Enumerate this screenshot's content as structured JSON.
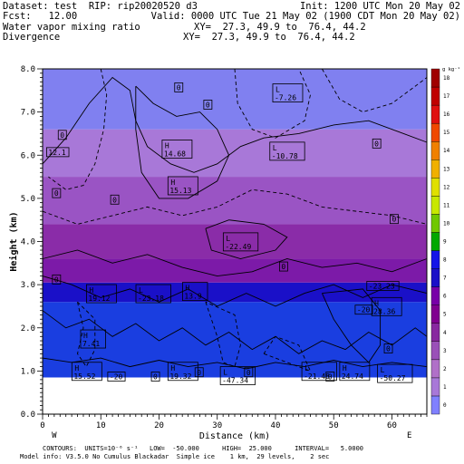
{
  "header": {
    "line1_left": "Dataset: test  RIP: rip20020520 d3",
    "line1_right": "Init: 1200 UTC Mon 20 May 02",
    "line2_left": "Fcst:   12.00",
    "line2_right": "Valid: 0000 UTC Tue 21 May 02 (1900 CDT Mon 20 May 02)",
    "line3_left": "Water vapor mixing ratio",
    "line3_right": "XY=  27.3, 49.9 to  76.4, 44.2",
    "line4_left": "Divergence",
    "line4_right": "XY=  27.3, 49.9 to  76.4, 44.2"
  },
  "footer": {
    "line1": "CONTOURS:  UNITS=10⁻⁶ s⁻¹   LOW=  -50.000      HIGH=  25.000      INTERVAL=   5.0000",
    "line2": "Model info: V3.5.0 No Cumulus Blackadar  Simple ice    1 km,  29 levels,    2 sec"
  },
  "chart_data": {
    "type": "heatmap",
    "xlabel": "Distance (km)",
    "ylabel": "Height (km)",
    "xlim": [
      0,
      66
    ],
    "ylim": [
      0,
      8
    ],
    "x_ticks": [
      0,
      10,
      20,
      30,
      40,
      50,
      60
    ],
    "y_ticks": [
      0.0,
      1.0,
      2.0,
      3.0,
      4.0,
      5.0,
      6.0,
      7.0,
      8.0
    ],
    "x_endpoint_labels": [
      "W",
      "E"
    ],
    "terrain_top_km": 0.85,
    "colorbar": {
      "unit_label": "g kg⁻¹",
      "levels": [
        0,
        1,
        2,
        3,
        4,
        5,
        6,
        7,
        8,
        9,
        10,
        11,
        12,
        13,
        14,
        15,
        16,
        17,
        18
      ],
      "colors": [
        "#8080ff",
        "#a878d8",
        "#b070c8",
        "#9a50b8",
        "#8828a0",
        "#800090",
        "#7800a8",
        "#1a10c8",
        "#1414e8",
        "#00a800",
        "#70c800",
        "#c8e800",
        "#e0e000",
        "#f0b000",
        "#f08000",
        "#f04800",
        "#e01010",
        "#c00000",
        "#a00000"
      ]
    },
    "shading_bands": [
      {
        "from": 0.85,
        "to": 2.6,
        "color": "#1a3ee0"
      },
      {
        "from": 2.6,
        "to": 3.05,
        "color": "#1a10c8"
      },
      {
        "from": 3.05,
        "to": 3.6,
        "color": "#7c1aa8"
      },
      {
        "from": 3.6,
        "to": 4.4,
        "color": "#8a2ca8"
      },
      {
        "from": 4.4,
        "to": 5.5,
        "color": "#9a54c4"
      },
      {
        "from": 5.5,
        "to": 6.6,
        "color": "#a878d8"
      },
      {
        "from": 6.6,
        "to": 8.0,
        "color": "#8080f0"
      }
    ],
    "divergence_labels": [
      {
        "x": 1,
        "y": 6.05,
        "text": "12.1"
      },
      {
        "x": 21,
        "y": 6.1,
        "type": "H",
        "text": "14.68"
      },
      {
        "x": 39.5,
        "y": 6.05,
        "type": "L",
        "text": "-10.78"
      },
      {
        "x": 40,
        "y": 7.4,
        "type": "L",
        "text": "-7.26"
      },
      {
        "x": 22,
        "y": 5.25,
        "type": "H",
        "text": "15.13"
      },
      {
        "x": 31.5,
        "y": 3.95,
        "type": "L",
        "text": "-22.49"
      },
      {
        "x": 8,
        "y": 2.75,
        "type": "H",
        "text": "19.12"
      },
      {
        "x": 16.5,
        "y": 2.75,
        "type": "L",
        "text": "-23.18"
      },
      {
        "x": 24.5,
        "y": 2.8,
        "type": "H",
        "text": "13.9"
      },
      {
        "x": 56,
        "y": 2.95,
        "text": "-23.23"
      },
      {
        "x": 54,
        "y": 2.4,
        "text": "-20"
      },
      {
        "x": 57,
        "y": 2.45,
        "type": "H",
        "text": "28.36"
      },
      {
        "x": 7,
        "y": 1.7,
        "type": "H",
        "text": "7.41"
      },
      {
        "x": 5.5,
        "y": 0.95,
        "type": "H",
        "text": "15.52"
      },
      {
        "x": 11.5,
        "y": 0.85,
        "text": "-20"
      },
      {
        "x": 22,
        "y": 0.95,
        "type": "H",
        "text": "19.32"
      },
      {
        "x": 31,
        "y": 0.85,
        "type": "L",
        "text": "-47.34"
      },
      {
        "x": 45,
        "y": 0.95,
        "type": "L",
        "text": "-21.48"
      },
      {
        "x": 51.5,
        "y": 0.95,
        "type": "H",
        "text": "24.74"
      },
      {
        "x": 58,
        "y": 0.9,
        "type": "L",
        "text": "-50.27"
      },
      {
        "x": 23,
        "y": 7.55,
        "text": "0"
      },
      {
        "x": 28,
        "y": 7.15,
        "text": "0"
      },
      {
        "x": 3,
        "y": 6.45,
        "text": "0"
      },
      {
        "x": 57,
        "y": 6.25,
        "text": "0"
      },
      {
        "x": 2,
        "y": 5.1,
        "text": "0"
      },
      {
        "x": 12,
        "y": 4.95,
        "text": "0"
      },
      {
        "x": 60,
        "y": 4.5,
        "text": "0"
      },
      {
        "x": 2,
        "y": 3.1,
        "text": "0"
      },
      {
        "x": 41,
        "y": 3.4,
        "text": "0"
      },
      {
        "x": 19,
        "y": 0.85,
        "text": "0"
      },
      {
        "x": 26.5,
        "y": 0.95,
        "text": "0"
      },
      {
        "x": 35,
        "y": 0.95,
        "text": "0"
      },
      {
        "x": 49,
        "y": 0.85,
        "text": "0"
      },
      {
        "x": 59,
        "y": 1.5,
        "text": "0"
      }
    ],
    "contour_lines": [
      {
        "dashed": false,
        "points": [
          [
            0,
            5.8
          ],
          [
            4,
            6.4
          ],
          [
            8,
            7.2
          ],
          [
            12,
            7.8
          ],
          [
            15,
            7.5
          ],
          [
            16,
            6.8
          ],
          [
            18,
            6.2
          ],
          [
            22,
            5.8
          ],
          [
            26,
            5.6
          ],
          [
            30,
            5.8
          ],
          [
            34,
            6.2
          ],
          [
            38,
            6.4
          ],
          [
            44,
            6.5
          ],
          [
            50,
            6.7
          ],
          [
            56,
            6.8
          ],
          [
            62,
            6.5
          ],
          [
            66,
            6.3
          ]
        ]
      },
      {
        "dashed": true,
        "points": [
          [
            10,
            8
          ],
          [
            11,
            7.4
          ],
          [
            10.5,
            6.6
          ],
          [
            9,
            5.8
          ],
          [
            7,
            5.3
          ],
          [
            4,
            5.2
          ],
          [
            1,
            5.5
          ]
        ]
      },
      {
        "dashed": false,
        "points": [
          [
            16,
            7.6
          ],
          [
            19,
            7.2
          ],
          [
            23,
            6.9
          ],
          [
            27,
            7.0
          ],
          [
            30,
            6.6
          ],
          [
            32,
            6.0
          ],
          [
            30,
            5.4
          ],
          [
            25,
            5.0
          ],
          [
            20,
            5.0
          ],
          [
            17,
            5.6
          ],
          [
            16,
            6.6
          ],
          [
            16,
            7.6
          ]
        ]
      },
      {
        "dashed": true,
        "points": [
          [
            33,
            8
          ],
          [
            33.5,
            7.2
          ],
          [
            36,
            6.6
          ],
          [
            40,
            6.4
          ],
          [
            45,
            6.8
          ],
          [
            46,
            7.4
          ],
          [
            44,
            8
          ]
        ]
      },
      {
        "dashed": true,
        "points": [
          [
            48,
            8
          ],
          [
            51,
            7.3
          ],
          [
            55,
            7.0
          ],
          [
            60,
            7.2
          ],
          [
            64,
            7.6
          ],
          [
            66,
            7.8
          ]
        ]
      },
      {
        "dashed": true,
        "points": [
          [
            0,
            4.7
          ],
          [
            6,
            4.4
          ],
          [
            12,
            4.6
          ],
          [
            18,
            4.8
          ],
          [
            24,
            4.6
          ],
          [
            30,
            4.8
          ],
          [
            36,
            5.2
          ],
          [
            42,
            5.1
          ],
          [
            48,
            4.8
          ],
          [
            54,
            4.7
          ],
          [
            60,
            4.6
          ],
          [
            66,
            4.4
          ]
        ]
      },
      {
        "dashed": false,
        "points": [
          [
            28,
            4.3
          ],
          [
            32,
            4.5
          ],
          [
            38,
            4.4
          ],
          [
            42,
            4.1
          ],
          [
            40,
            3.8
          ],
          [
            34,
            3.6
          ],
          [
            29,
            3.8
          ],
          [
            28,
            4.3
          ]
        ]
      },
      {
        "dashed": false,
        "points": [
          [
            0,
            3.6
          ],
          [
            6,
            3.8
          ],
          [
            12,
            3.5
          ],
          [
            18,
            3.7
          ],
          [
            24,
            3.4
          ],
          [
            30,
            3.2
          ],
          [
            36,
            3.3
          ],
          [
            42,
            3.6
          ],
          [
            48,
            3.4
          ],
          [
            54,
            3.5
          ],
          [
            60,
            3.3
          ],
          [
            66,
            3.6
          ]
        ]
      },
      {
        "dashed": false,
        "points": [
          [
            0,
            3.2
          ],
          [
            5,
            3.0
          ],
          [
            10,
            2.7
          ],
          [
            15,
            2.9
          ],
          [
            20,
            2.6
          ],
          [
            25,
            2.9
          ],
          [
            30,
            2.5
          ],
          [
            35,
            2.8
          ],
          [
            40,
            2.5
          ],
          [
            45,
            2.8
          ],
          [
            50,
            3.0
          ],
          [
            55,
            2.7
          ],
          [
            60,
            3.0
          ],
          [
            66,
            2.8
          ]
        ]
      },
      {
        "dashed": false,
        "points": [
          [
            0,
            2.4
          ],
          [
            4,
            2.0
          ],
          [
            8,
            2.2
          ],
          [
            12,
            1.8
          ],
          [
            16,
            2.1
          ],
          [
            20,
            1.7
          ],
          [
            24,
            2.0
          ],
          [
            28,
            1.6
          ],
          [
            32,
            1.9
          ],
          [
            36,
            1.5
          ],
          [
            40,
            1.8
          ],
          [
            44,
            1.4
          ],
          [
            48,
            1.7
          ],
          [
            52,
            1.5
          ],
          [
            56,
            1.9
          ],
          [
            60,
            1.6
          ],
          [
            64,
            2.0
          ],
          [
            66,
            1.8
          ]
        ]
      },
      {
        "dashed": true,
        "points": [
          [
            6,
            2.6
          ],
          [
            7,
            2.0
          ],
          [
            6,
            1.4
          ],
          [
            7.5,
            1.1
          ],
          [
            9,
            1.5
          ],
          [
            9,
            2.2
          ],
          [
            6,
            2.6
          ]
        ]
      },
      {
        "dashed": true,
        "points": [
          [
            28,
            2.6
          ],
          [
            30,
            1.8
          ],
          [
            31,
            1.2
          ],
          [
            33,
            1.1
          ],
          [
            34,
            1.6
          ],
          [
            33,
            2.3
          ],
          [
            28,
            2.6
          ]
        ]
      },
      {
        "dashed": false,
        "points": [
          [
            48,
            2.8
          ],
          [
            50,
            2.2
          ],
          [
            53,
            1.6
          ],
          [
            56,
            1.2
          ],
          [
            58,
            1.6
          ],
          [
            58,
            2.4
          ],
          [
            55,
            2.9
          ],
          [
            48,
            2.8
          ]
        ]
      },
      {
        "dashed": true,
        "points": [
          [
            38,
            1.4
          ],
          [
            42,
            1.2
          ],
          [
            46,
            1.0
          ],
          [
            44,
            1.6
          ],
          [
            40,
            1.8
          ],
          [
            38,
            1.4
          ]
        ]
      },
      {
        "dashed": false,
        "points": [
          [
            0,
            1.3
          ],
          [
            5,
            1.2
          ],
          [
            10,
            1.3
          ],
          [
            15,
            1.1
          ],
          [
            20,
            1.25
          ],
          [
            25,
            1.1
          ],
          [
            30,
            1.2
          ],
          [
            35,
            1.05
          ],
          [
            40,
            1.2
          ],
          [
            45,
            1.1
          ],
          [
            50,
            1.25
          ],
          [
            55,
            1.1
          ],
          [
            60,
            1.2
          ],
          [
            66,
            1.1
          ]
        ]
      }
    ]
  }
}
